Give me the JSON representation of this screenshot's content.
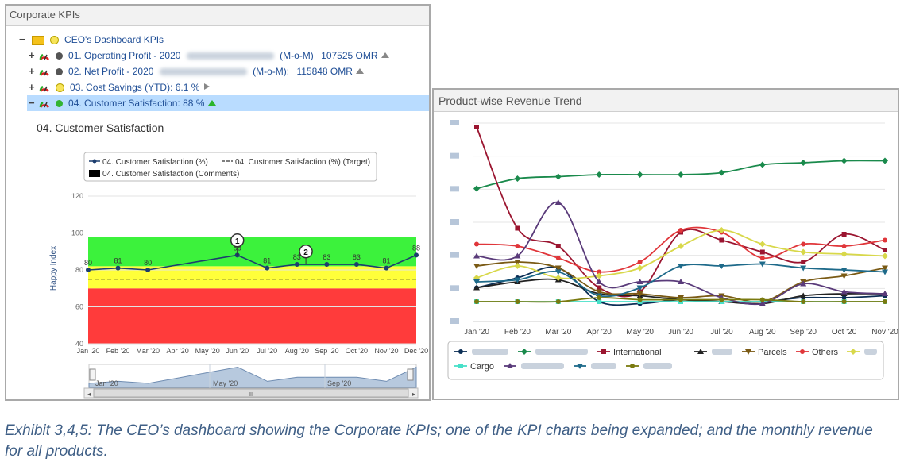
{
  "kpi_panel": {
    "title": "Corporate KPIs",
    "tree": {
      "root": {
        "toggle": "−",
        "label": "CEO's Dashboard KPIs"
      },
      "items": [
        {
          "toggle": "+",
          "label": "01. Operating Profit - 2020",
          "mom": "(M-o-M)",
          "value": "107525 OMR",
          "status_color": "#555555"
        },
        {
          "toggle": "+",
          "label": "02. Net Profit - 2020",
          "mom": "(M-o-M):",
          "value": "115848 OMR",
          "status_color": "#555555"
        },
        {
          "toggle": "+",
          "label": "03. Cost Savings (YTD): 6.1 %",
          "status_color": "#e8d84a"
        },
        {
          "toggle": "−",
          "label": "04. Customer Satisfaction: 88 %",
          "status_color": "#32b432"
        }
      ]
    },
    "chart_title": "04. Customer Satisfaction",
    "legend": {
      "actual": "04. Customer Satisfaction (%)",
      "target": "04. Customer Satisfaction (%) (Target)",
      "comments": "04. Customer Satisfaction (Comments)"
    },
    "navigator_labels": [
      "Jan '20",
      "May '20",
      "Sep '20"
    ],
    "scroll_thumb": "III"
  },
  "chart_data": [
    {
      "type": "line",
      "ylabel": "Happy Index",
      "ylim": [
        40,
        120
      ],
      "yticks": [
        40,
        60,
        80,
        100,
        120
      ],
      "categories": [
        "Jan '20",
        "Feb '20",
        "Mar '20",
        "Apr '20",
        "May '20",
        "Jun '20",
        "Jul '20",
        "Aug '20",
        "Sep '20",
        "Oct '20",
        "Nov '20",
        "Dec '20"
      ],
      "series": [
        {
          "name": "04. Customer Satisfaction (%)",
          "x": [
            0,
            1,
            2,
            5,
            6,
            7,
            8,
            9,
            10,
            11
          ],
          "values": [
            80,
            81,
            80,
            88,
            81,
            83,
            83,
            83,
            81,
            88
          ],
          "color": "#1c3d6e"
        },
        {
          "name": "04. Customer Satisfaction (%) (Target)",
          "value": 75,
          "color": "#222222"
        }
      ],
      "data_labels": [
        "80",
        "81",
        "80",
        "88",
        "81",
        "83",
        "83",
        "83",
        "81",
        "88"
      ],
      "bands": [
        {
          "from": 40,
          "to": 70,
          "color": "#ff3b3b"
        },
        {
          "from": 70,
          "to": 82,
          "color": "#ffff3a"
        },
        {
          "from": 82,
          "to": 98,
          "color": "#3cf23c"
        }
      ],
      "comment_markers": [
        {
          "x": 5,
          "label": "1"
        },
        {
          "x": 7.3,
          "label": "2"
        }
      ]
    },
    {
      "type": "line",
      "title": "Product-wise Revenue Trend",
      "categories": [
        "Jan '20",
        "Feb '20",
        "Mar '20",
        "Apr '20",
        "May '20",
        "Jun '20",
        "Jul '20",
        "Aug '20",
        "Sep '20",
        "Oct '20",
        "Nov '20"
      ],
      "ylim": [
        0,
        100
      ],
      "series": [
        {
          "name": "",
          "color": "#0b2e55",
          "marker": "circle",
          "values": [
            17,
            22,
            27,
            10,
            9,
            11,
            10,
            10,
            12,
            12,
            13
          ]
        },
        {
          "name": "",
          "color": "#1a8a4c",
          "marker": "diamond",
          "values": [
            67,
            72,
            73,
            74,
            74,
            74,
            75,
            79,
            80,
            81,
            81
          ]
        },
        {
          "name": "International",
          "color": "#9b1530",
          "marker": "square",
          "values": [
            98,
            47,
            38,
            17,
            15,
            45,
            41,
            35,
            30,
            44,
            36
          ]
        },
        {
          "name": "",
          "color": "#222222",
          "marker": "triangle",
          "values": [
            17,
            20,
            21,
            14,
            13,
            11,
            10,
            9,
            13,
            14,
            14
          ]
        },
        {
          "name": "Parcels",
          "color": "#7a5a14",
          "marker": "triangle-down",
          "values": [
            28,
            30,
            27,
            15,
            14,
            12,
            13,
            10,
            20,
            23,
            27
          ]
        },
        {
          "name": "Others",
          "color": "#e0363a",
          "marker": "circle",
          "values": [
            39,
            38,
            32,
            25,
            30,
            46,
            45,
            32,
            39,
            38,
            41
          ]
        },
        {
          "name": "",
          "color": "#d8d84a",
          "marker": "diamond",
          "values": [
            22,
            28,
            22,
            23,
            27,
            38,
            46,
            39,
            35,
            34,
            33
          ]
        },
        {
          "name": "Cargo",
          "color": "#47e0c8",
          "marker": "square",
          "values": [
            10,
            10,
            10,
            10,
            10,
            10,
            10,
            10,
            10,
            10,
            10
          ]
        },
        {
          "name": "",
          "color": "#5a3b7a",
          "marker": "triangle",
          "values": [
            33,
            33,
            60,
            20,
            20,
            20,
            12,
            9,
            19,
            15,
            14
          ]
        },
        {
          "name": "",
          "color": "#1e6a8a",
          "marker": "triangle-down",
          "values": [
            20,
            21,
            25,
            13,
            17,
            28,
            28,
            29,
            27,
            26,
            25
          ]
        },
        {
          "name": "",
          "color": "#7a7a10",
          "marker": "circle",
          "values": [
            10,
            10,
            10,
            12,
            11,
            11,
            11,
            11,
            10,
            10,
            10
          ]
        }
      ]
    }
  ],
  "caption": "Exhibit 3,4,5: The CEO’s dashboard showing the Corporate KPIs; one of the KPI charts being expanded; and the monthly revenue for all products."
}
